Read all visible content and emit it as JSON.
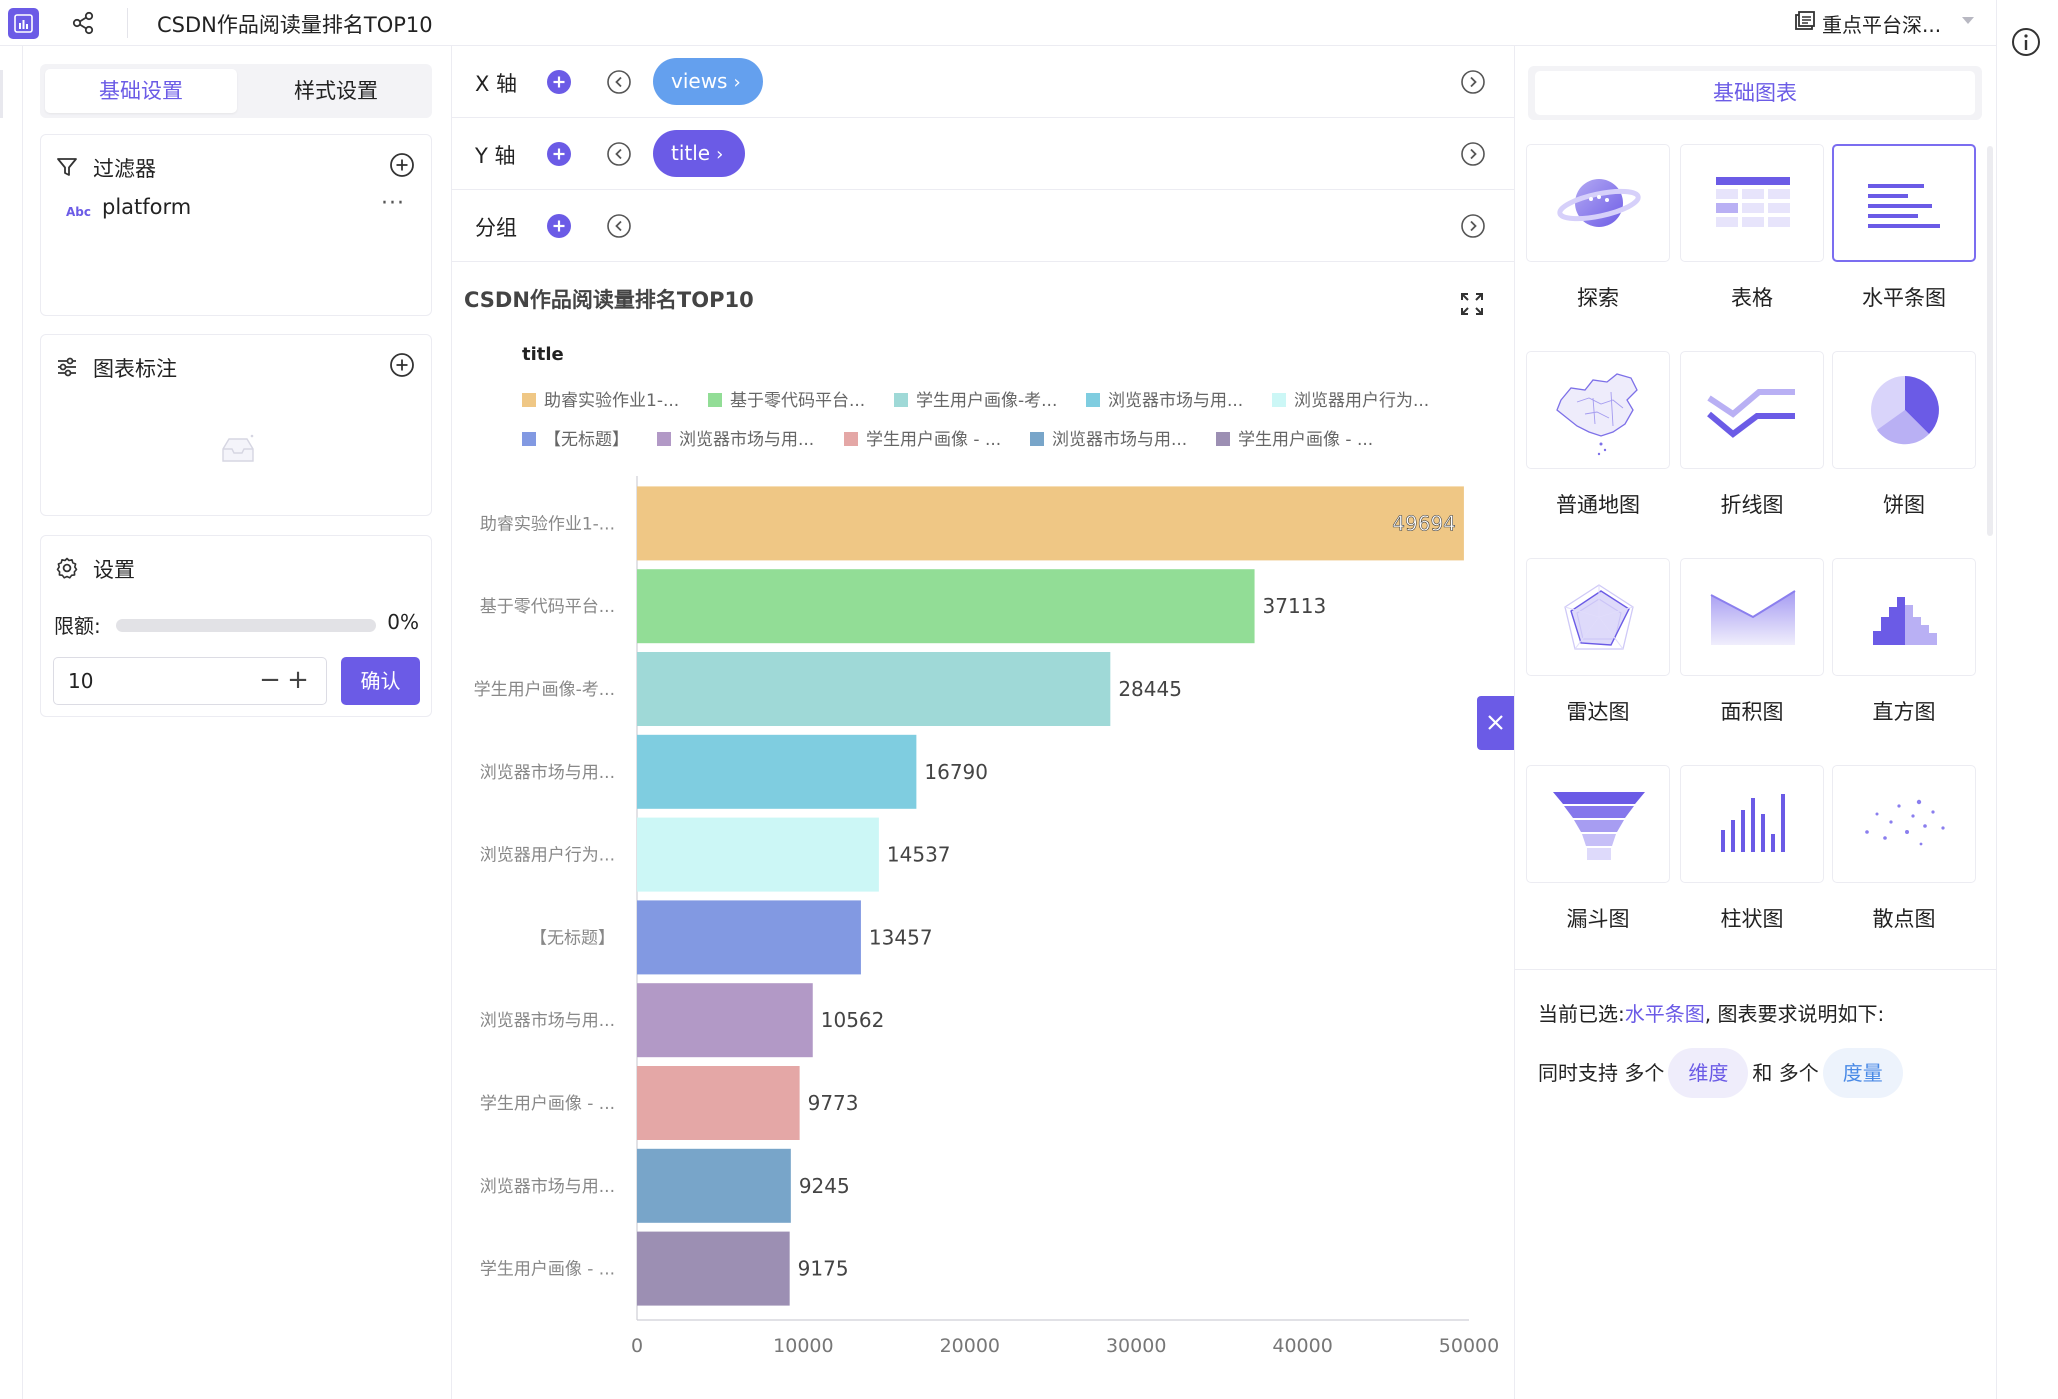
{
  "header": {
    "title": "CSDN作品阅读量排名TOP10",
    "dataset": "重点平台深..."
  },
  "left_panel": {
    "tabs": [
      "基础设置",
      "样式设置"
    ],
    "filter": {
      "title": "过滤器",
      "field_type": "Abc",
      "field_name": "platform",
      "more": "···"
    },
    "annotation": {
      "title": "图表标注"
    },
    "settings": {
      "title": "设置",
      "quota_label": "限额:",
      "quota_pct": "0%",
      "quota_value": 0,
      "limit": "10",
      "minus": "−",
      "plus": "+",
      "confirm": "确认"
    }
  },
  "axes": {
    "x": {
      "label": "X 轴",
      "field": "views"
    },
    "y": {
      "label": "Y 轴",
      "field": "title"
    },
    "group": {
      "label": "分组"
    }
  },
  "chart_data": {
    "type": "bar",
    "orientation": "horizontal",
    "title": "CSDN作品阅读量排名TOP10",
    "legend_title": "title",
    "categories": [
      "助睿实验作业1-...",
      "基于零代码平台...",
      "学生用户画像-考...",
      "浏览器市场与用...",
      "浏览器用户行为...",
      "【无标题】",
      "浏览器市场与用...",
      "学生用户画像 - ...",
      "浏览器市场与用...",
      "学生用户画像 - ..."
    ],
    "values": [
      49694,
      37113,
      28445,
      16790,
      14537,
      13457,
      10562,
      9773,
      9245,
      9175
    ],
    "value_labels": [
      "49694",
      "37113",
      "28445",
      "16790",
      "14537",
      "13457",
      "10562",
      "9773",
      "9245",
      "9175"
    ],
    "colors": [
      "#efc785",
      "#92dd96",
      "#9fd9d7",
      "#7fcde0",
      "#ccf7f6",
      "#8299e2",
      "#b299c6",
      "#e4a7a6",
      "#78a5c9",
      "#9c8fb3"
    ],
    "legend": [
      "助睿实验作业1-...",
      "基于零代码平台...",
      "学生用户画像-考...",
      "浏览器市场与用...",
      "浏览器用户行为...",
      "【无标题】",
      "浏览器市场与用...",
      "学生用户画像 - ...",
      "浏览器市场与用...",
      "学生用户画像 - ..."
    ],
    "xticks": [
      "0",
      "10000",
      "20000",
      "30000",
      "40000",
      "50000"
    ],
    "xlim": [
      0,
      50000
    ]
  },
  "chart_types": {
    "tab": "基础图表",
    "items": [
      {
        "label": "探索",
        "icon": "planet-icon"
      },
      {
        "label": "表格",
        "icon": "table-icon"
      },
      {
        "label": "水平条图",
        "icon": "hbar-icon",
        "selected": true
      },
      {
        "label": "普通地图",
        "icon": "china-map-icon"
      },
      {
        "label": "折线图",
        "icon": "line-chart-icon"
      },
      {
        "label": "饼图",
        "icon": "pie-chart-icon"
      },
      {
        "label": "雷达图",
        "icon": "radar-chart-icon"
      },
      {
        "label": "面积图",
        "icon": "area-chart-icon"
      },
      {
        "label": "直方图",
        "icon": "histogram-icon"
      },
      {
        "label": "漏斗图",
        "icon": "funnel-chart-icon"
      },
      {
        "label": "柱状图",
        "icon": "column-chart-icon"
      },
      {
        "label": "散点图",
        "icon": "scatter-chart-icon"
      }
    ],
    "desc_prefix": "当前已选:",
    "desc_selected": "水平条图",
    "desc_suffix": ", 图表要求说明如下:",
    "req_prefix": "同时支持 多个",
    "req_dim": "维度",
    "req_mid": "和 多个",
    "req_mea": "度量"
  },
  "colors": {
    "accent": "#6b5be6"
  }
}
